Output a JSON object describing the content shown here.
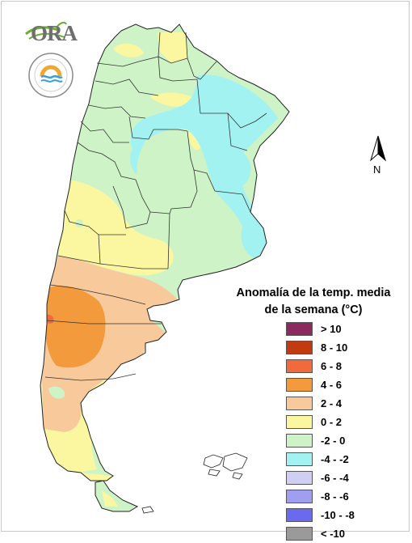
{
  "logo": {
    "text": "ORA"
  },
  "north_arrow": {
    "label": "N"
  },
  "legend": {
    "title_line1": "Anomalía de la temp. media",
    "title_line2": "de la semana (°C)",
    "items": [
      {
        "label": "> 10",
        "color": "#8b2a5f"
      },
      {
        "label": "8 - 10",
        "color": "#c23b10"
      },
      {
        "label": "6 - 8",
        "color": "#f26a3c"
      },
      {
        "label": "4 - 6",
        "color": "#f39a3d"
      },
      {
        "label": "2 - 4",
        "color": "#f8c99a"
      },
      {
        "label": "0 - 2",
        "color": "#fbf7a0"
      },
      {
        "label": "-2 - 0",
        "color": "#cdf3c6"
      },
      {
        "label": "-4 - -2",
        "color": "#a3f2f2"
      },
      {
        "label": "-6 - -4",
        "color": "#cfcff6"
      },
      {
        "label": "-8 - -6",
        "color": "#9f9ff2"
      },
      {
        "label": "-10 - -8",
        "color": "#6a6af0"
      },
      {
        "label": "< -10",
        "color": "#9a9a9a"
      }
    ]
  }
}
